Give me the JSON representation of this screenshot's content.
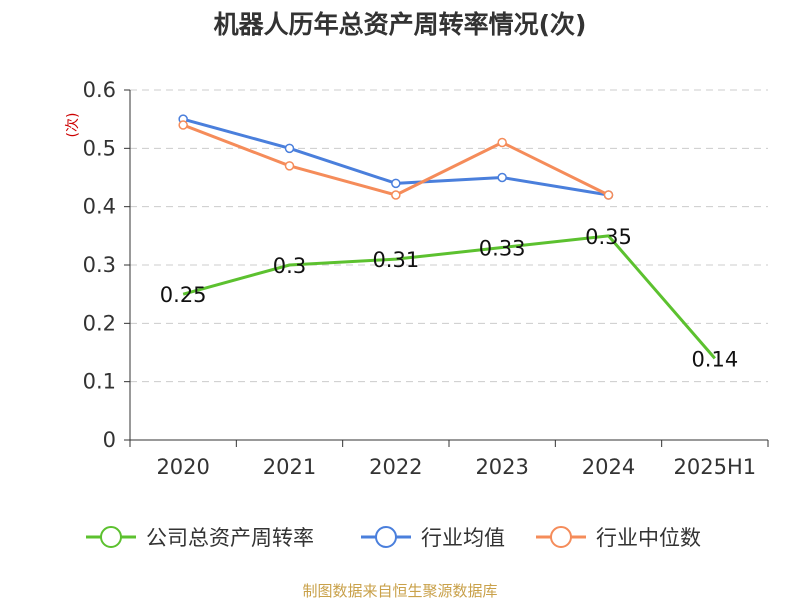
{
  "chart_data": {
    "type": "line",
    "title": "机器人历年总资产周转率情况(次)",
    "ylabel": "(次)",
    "categories": [
      "2020",
      "2021",
      "2022",
      "2023",
      "2024",
      "2025H1"
    ],
    "ylim": [
      0,
      0.6
    ],
    "yticks": [
      "0",
      "0.1",
      "0.2",
      "0.3",
      "0.4",
      "0.5",
      "0.6"
    ],
    "grid": true,
    "legend_position": "bottom",
    "series": [
      {
        "name": "公司总资产周转率",
        "color": "#5cc12f",
        "values": [
          0.25,
          0.3,
          0.31,
          0.33,
          0.35,
          0.14
        ],
        "labels": [
          "0.25",
          "0.3",
          "0.31",
          "0.33",
          "0.35",
          "0.14"
        ]
      },
      {
        "name": "行业均值",
        "color": "#4a7fdc",
        "values": [
          0.55,
          0.5,
          0.44,
          0.45,
          0.42,
          null
        ]
      },
      {
        "name": "行业中位数",
        "color": "#f58c5a",
        "values": [
          0.54,
          0.47,
          0.42,
          0.51,
          0.42,
          null
        ]
      }
    ]
  },
  "source": "制图数据来自恒生聚源数据库"
}
